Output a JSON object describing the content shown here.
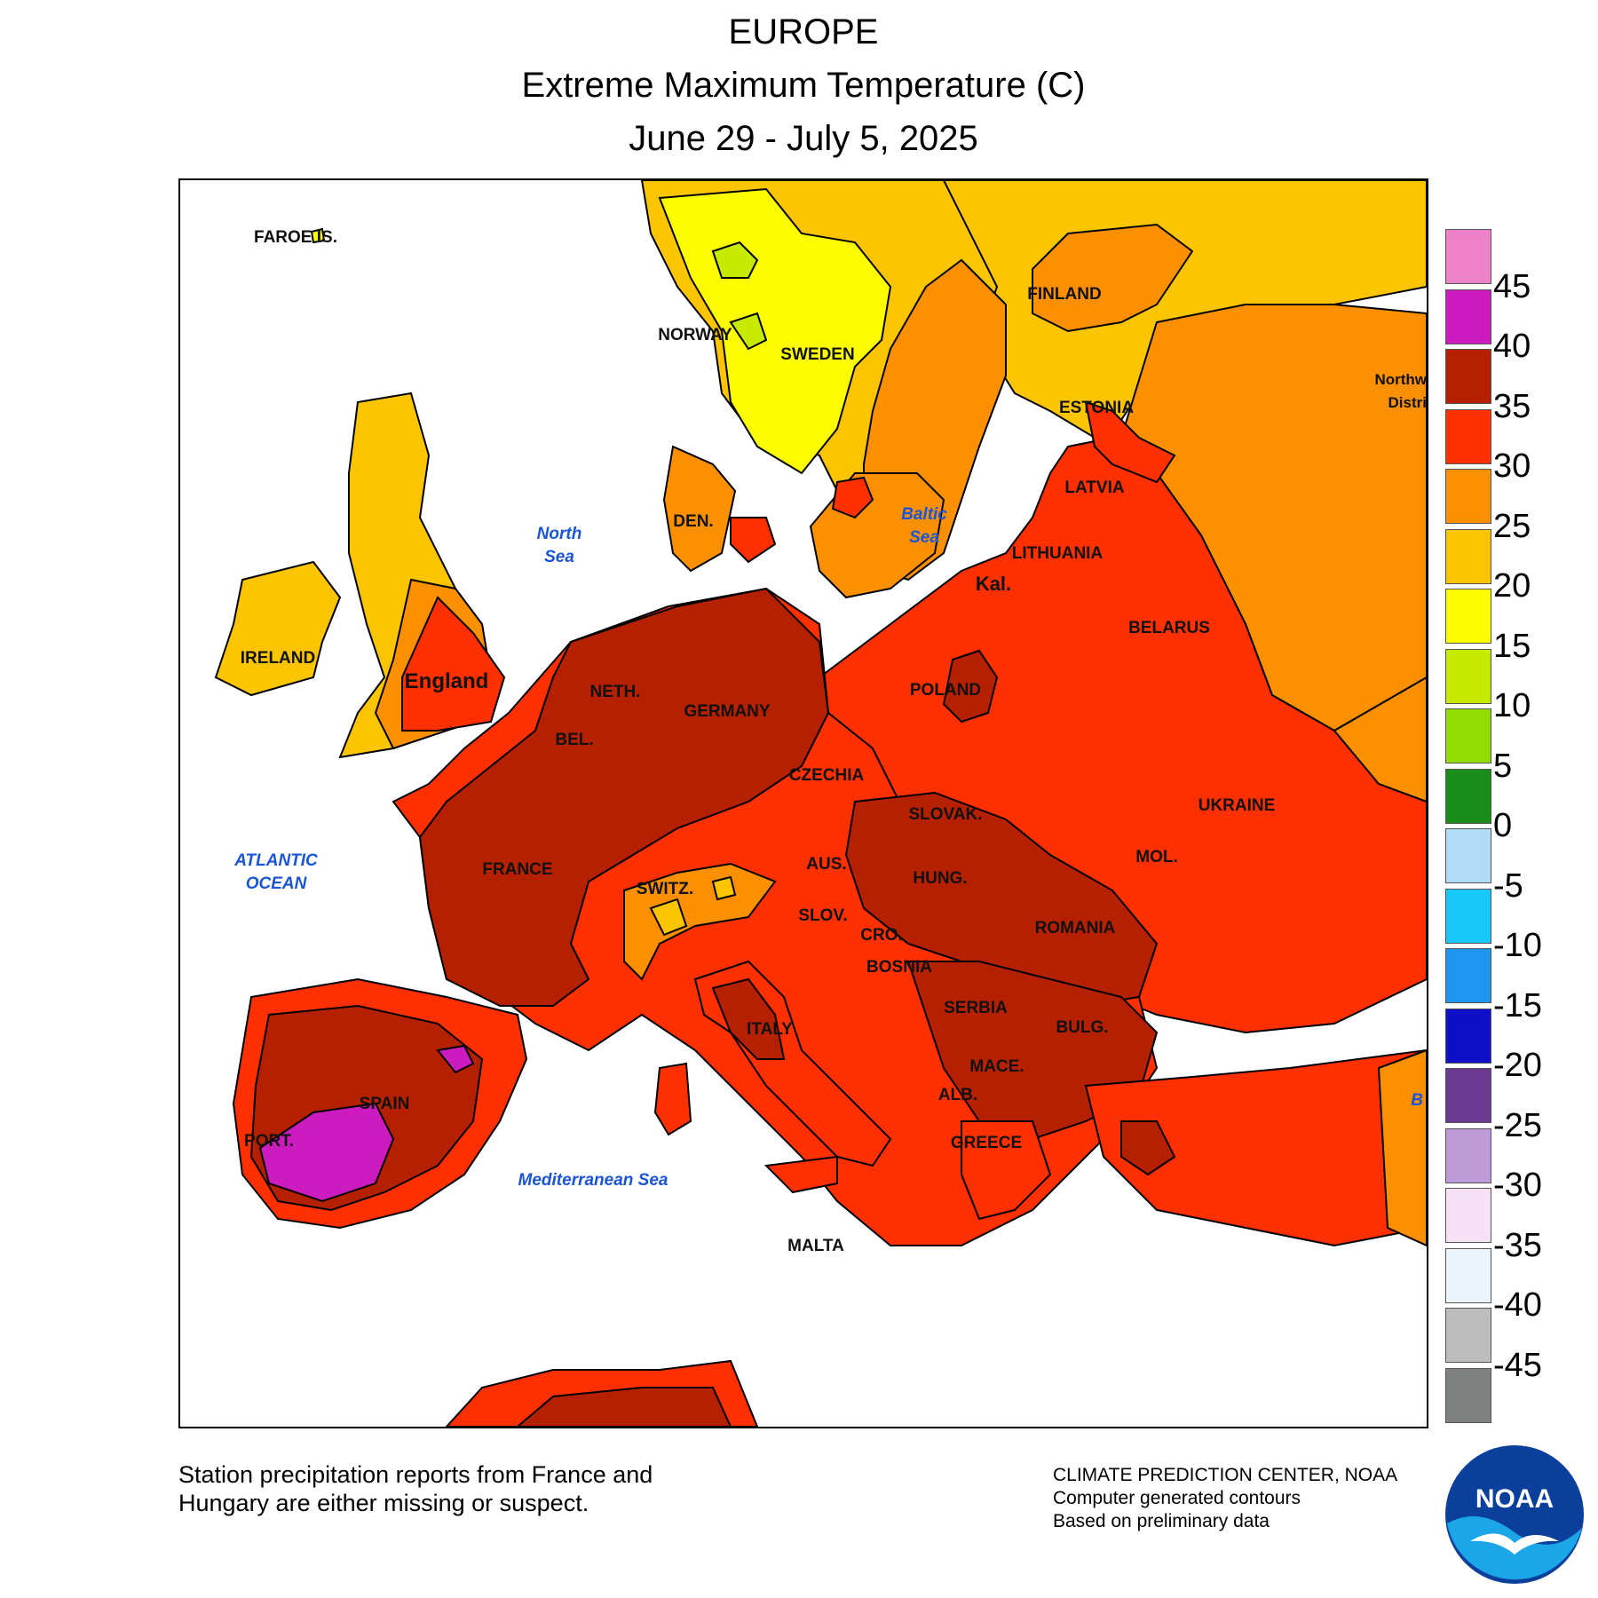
{
  "header": {
    "region": "EUROPE",
    "title": "Extreme Maximum Temperature (C)",
    "period": "June 29 - July 5, 2025"
  },
  "map": {
    "sea_labels": [
      {
        "text": "North",
        "key": "north"
      },
      {
        "text": "Sea",
        "key": "north2"
      },
      {
        "text": "Baltic",
        "key": "baltic"
      },
      {
        "text": "Sea",
        "key": "baltic2"
      },
      {
        "text": "ATLANTIC",
        "key": "atl"
      },
      {
        "text": "OCEAN",
        "key": "atl2"
      },
      {
        "text": "Mediterranean Sea",
        "key": "med"
      },
      {
        "text": "B",
        "key": "black"
      }
    ],
    "country_labels": [
      "FAROE IS.",
      "NORWAY",
      "SWEDEN",
      "FINLAND",
      "ESTONIA",
      "LATVIA",
      "LITHUANIA",
      "Kal.",
      "BELARUS",
      "DEN.",
      "IRELAND",
      "England",
      "NETH.",
      "BEL.",
      "GERMANY",
      "POLAND",
      "CZECHIA",
      "SLOVAK.",
      "UKRAINE",
      "MOL.",
      "FRANCE",
      "SWITZ.",
      "AUS.",
      "HUNG.",
      "SLOV.",
      "CRO.",
      "ROMANIA",
      "BOSNIA",
      "SERBIA",
      "BULG.",
      "MACE.",
      "ALB.",
      "ITALY",
      "GREECE",
      "SPAIN",
      "PORT.",
      "MALTA",
      "Northw",
      "Distri"
    ],
    "colors": {
      "c45": "#ee82c8",
      "c40": "#cc1bbf",
      "c35": "#b52000",
      "c30": "#fe3000",
      "c25": "#fd9000",
      "c20": "#fdc500",
      "c15": "#fdfd00",
      "c10": "#c6ea00",
      "sea": "#ffffff",
      "label_sea": "#1a55d6"
    }
  },
  "legend": {
    "colors": [
      "#ee82c8",
      "#cc1bbf",
      "#b52000",
      "#fe3000",
      "#fd9000",
      "#fdc500",
      "#fdfd00",
      "#c6ea00",
      "#92dc00",
      "#1a8c1a",
      "#b0dcf5",
      "#18c8f8",
      "#1e96f0",
      "#0e10c8",
      "#6a3a90",
      "#bf9ad8",
      "#f5e0f5",
      "#eaf4fa",
      "#bdbdbd",
      "#7f8181"
    ],
    "labels": [
      "45",
      "40",
      "35",
      "30",
      "25",
      "20",
      "15",
      "10",
      "5",
      "0",
      "-5",
      "-10",
      "-15",
      "-20",
      "-25",
      "-30",
      "-35",
      "-40",
      "-45"
    ]
  },
  "footer": {
    "note_line1": "Station precipitation reports from France and",
    "note_line2": "Hungary are either missing or suspect.",
    "credit1": "CLIMATE PREDICTION CENTER, NOAA",
    "credit2": "Computer generated contours",
    "credit3": "Based on preliminary data",
    "logo_text": "NOAA"
  }
}
